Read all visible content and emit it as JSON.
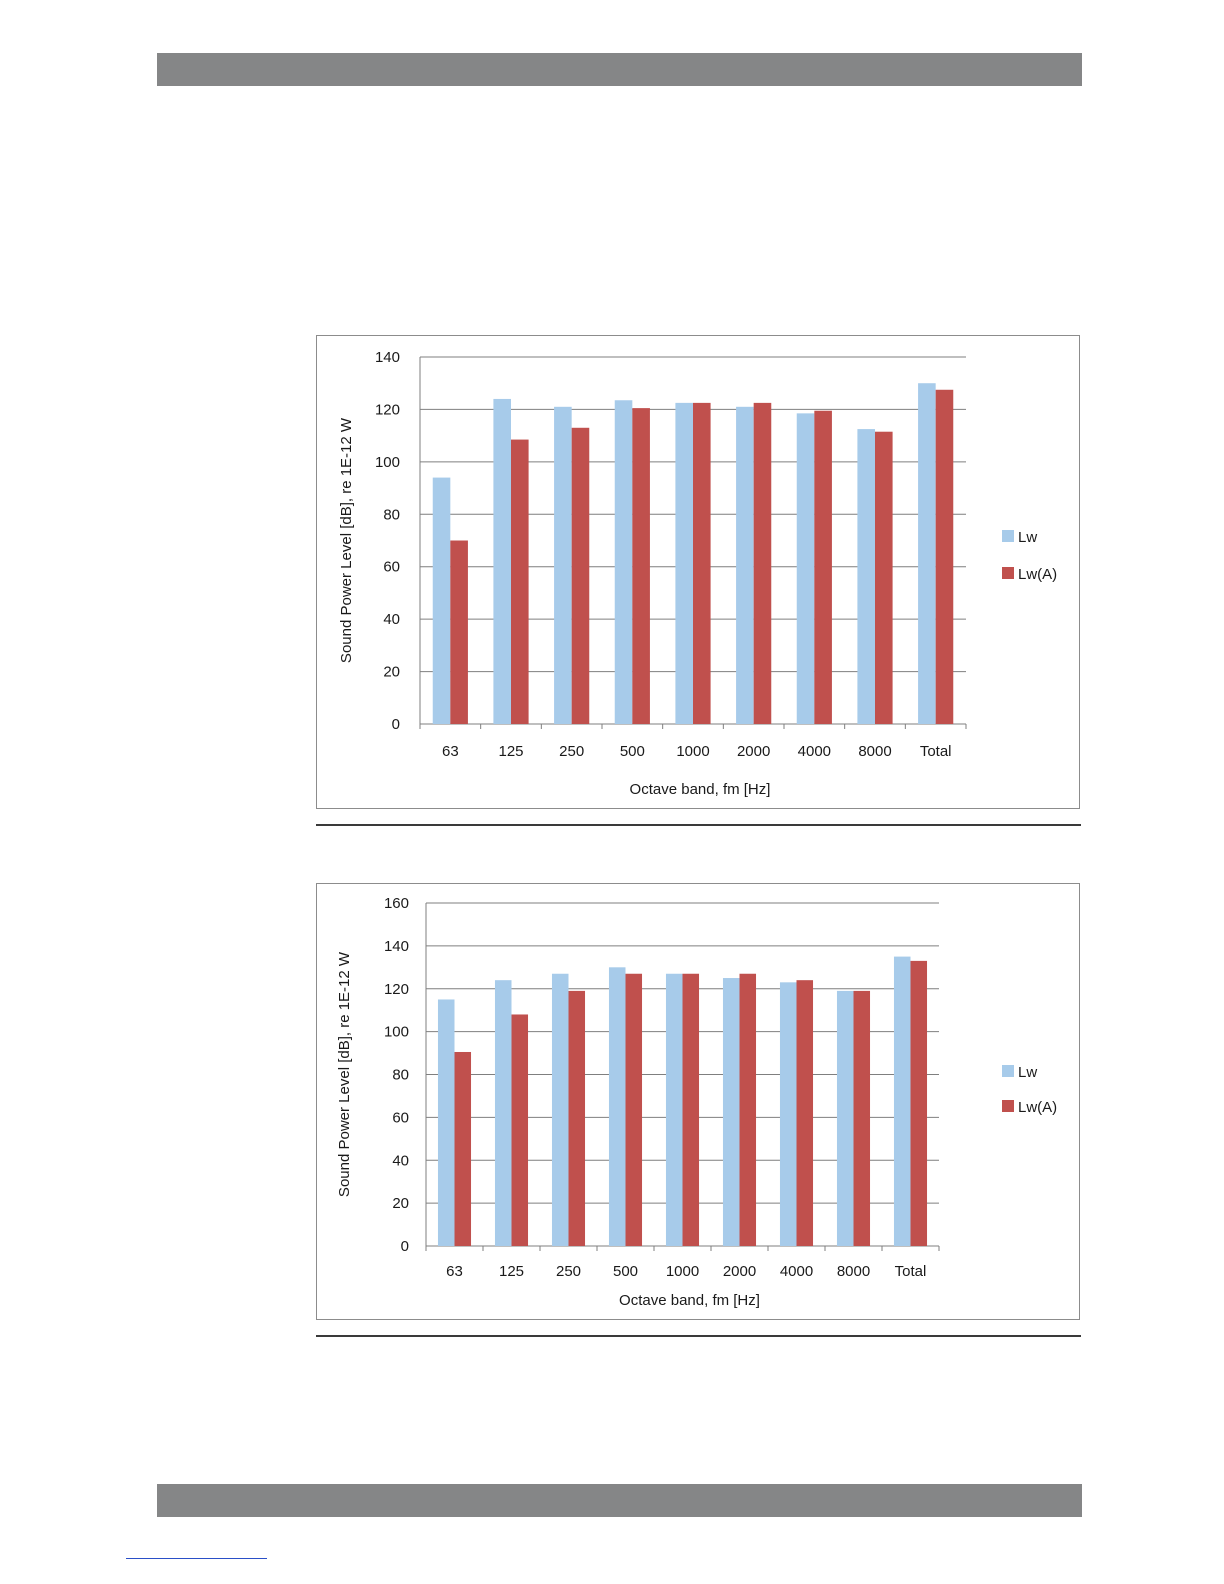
{
  "colors": {
    "lw": "#a7cbea",
    "lwa": "#c0504d",
    "grid": "#7f7f7f",
    "band": "#858687"
  },
  "chart_data": [
    {
      "type": "bar",
      "categories": [
        "63",
        "125",
        "250",
        "500",
        "1000",
        "2000",
        "4000",
        "8000",
        "Total"
      ],
      "series": [
        {
          "name": "Lw",
          "values": [
            94,
            124,
            121,
            123.5,
            122.5,
            121,
            118.5,
            112.5,
            130
          ]
        },
        {
          "name": "Lw(A)",
          "values": [
            70,
            108.5,
            113,
            120.5,
            122.5,
            122.5,
            119.5,
            111.5,
            127.5
          ]
        }
      ],
      "xlabel": "Octave band, fm [Hz]",
      "ylabel": "Sound Power Level [dB], re 1E-12 W",
      "ylim": [
        0,
        140
      ],
      "yticks": [
        0,
        20,
        40,
        60,
        80,
        100,
        120,
        140
      ],
      "grid": true,
      "legend": "right"
    },
    {
      "type": "bar",
      "categories": [
        "63",
        "125",
        "250",
        "500",
        "1000",
        "2000",
        "4000",
        "8000",
        "Total"
      ],
      "series": [
        {
          "name": "Lw",
          "values": [
            115,
            124,
            127,
            130,
            127,
            125,
            123,
            119,
            135
          ]
        },
        {
          "name": "Lw(A)",
          "values": [
            90.5,
            108,
            119,
            127,
            127,
            127,
            124,
            119,
            133
          ]
        }
      ],
      "xlabel": "Octave band, fm [Hz]",
      "ylabel": "Sound Power Level [dB], re 1E-12 W",
      "ylim": [
        0,
        160
      ],
      "yticks": [
        0,
        20,
        40,
        60,
        80,
        100,
        120,
        140,
        160
      ],
      "grid": true,
      "legend": "right"
    }
  ]
}
